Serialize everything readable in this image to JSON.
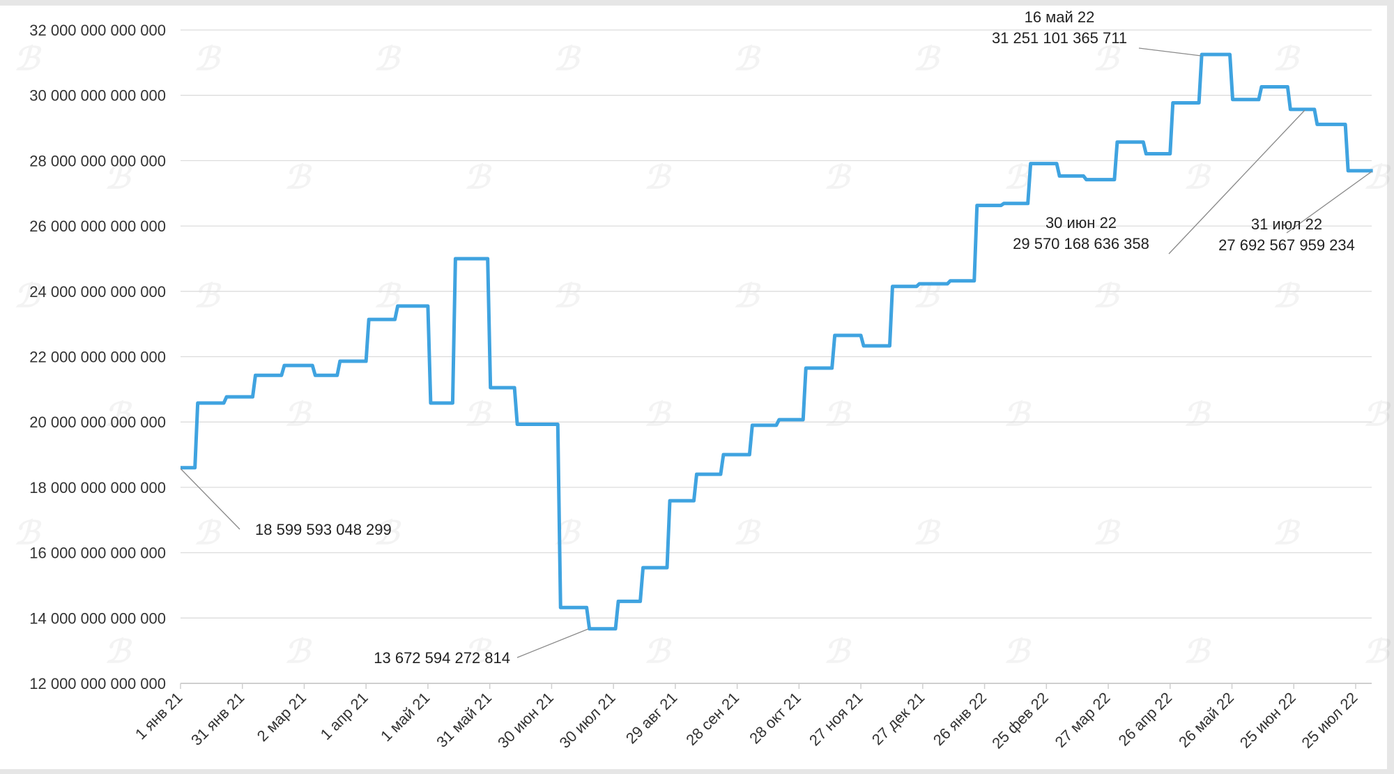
{
  "chart_data": {
    "type": "line",
    "step": true,
    "title": "",
    "xlabel": "",
    "ylabel": "",
    "ylim": [
      12000000000000,
      32000000000000
    ],
    "yticks": [
      12000000000000,
      14000000000000,
      16000000000000,
      18000000000000,
      20000000000000,
      22000000000000,
      24000000000000,
      26000000000000,
      28000000000000,
      30000000000000,
      32000000000000
    ],
    "ytick_labels": [
      "12 000 000 000 000",
      "14 000 000 000 000",
      "16 000 000 000 000",
      "18 000 000 000 000",
      "20 000 000 000 000",
      "22 000 000 000 000",
      "24 000 000 000 000",
      "26 000 000 000 000",
      "28 000 000 000 000",
      "30 000 000 000 000",
      "32 000 000 000 000"
    ],
    "xticks": [
      "2021-01-01",
      "2021-01-31",
      "2021-03-02",
      "2021-04-01",
      "2021-05-01",
      "2021-05-31",
      "2021-06-30",
      "2021-07-30",
      "2021-08-29",
      "2021-09-28",
      "2021-10-28",
      "2021-11-27",
      "2021-12-27",
      "2022-01-26",
      "2022-02-25",
      "2022-03-27",
      "2022-04-26",
      "2022-05-26",
      "2022-06-25",
      "2022-07-25"
    ],
    "xtick_labels": [
      "1 янв 21",
      "31 янв 21",
      "2 мар 21",
      "1 апр 21",
      "1 май 21",
      "31 май 21",
      "30 июн 21",
      "30 июл 21",
      "29 авг 21",
      "28 сен 21",
      "28 окт 21",
      "27 ноя 21",
      "27 дек 21",
      "26 янв 22",
      "25 фев 22",
      "27 мар 22",
      "26 апр 22",
      "26 май 22",
      "25 июн 22",
      "25 июл 22"
    ],
    "grid": true,
    "line_color": "#3fa3e0",
    "series": [
      {
        "points": [
          [
            "2021-01-01",
            18.6
          ],
          [
            "2021-01-09",
            20.58
          ],
          [
            "2021-01-23",
            20.77
          ],
          [
            "2021-02-06",
            21.43
          ],
          [
            "2021-02-20",
            21.73
          ],
          [
            "2021-03-07",
            21.43
          ],
          [
            "2021-03-19",
            21.86
          ],
          [
            "2021-04-02",
            23.14
          ],
          [
            "2021-04-16",
            23.55
          ],
          [
            "2021-05-02",
            20.58
          ],
          [
            "2021-05-14",
            25.0
          ],
          [
            "2021-05-31",
            21.05
          ],
          [
            "2021-06-13",
            19.93
          ],
          [
            "2021-07-04",
            14.32
          ],
          [
            "2021-07-18",
            13.67
          ],
          [
            "2021-08-01",
            14.51
          ],
          [
            "2021-08-13",
            15.54
          ],
          [
            "2021-08-26",
            17.59
          ],
          [
            "2021-09-08",
            18.4
          ],
          [
            "2021-09-21",
            19.0
          ],
          [
            "2021-10-05",
            19.9
          ],
          [
            "2021-10-18",
            20.07
          ],
          [
            "2021-10-31",
            21.65
          ],
          [
            "2021-11-14",
            22.65
          ],
          [
            "2021-11-28",
            22.33
          ],
          [
            "2021-12-12",
            24.15
          ],
          [
            "2021-12-25",
            24.23
          ],
          [
            "2022-01-09",
            24.32
          ],
          [
            "2022-01-22",
            26.63
          ],
          [
            "2022-02-04",
            26.69
          ],
          [
            "2022-02-17",
            27.91
          ],
          [
            "2022-03-03",
            27.53
          ],
          [
            "2022-03-16",
            27.42
          ],
          [
            "2022-03-31",
            28.57
          ],
          [
            "2022-04-14",
            28.21
          ],
          [
            "2022-04-27",
            29.77
          ],
          [
            "2022-05-11",
            31.25
          ],
          [
            "2022-05-26",
            29.87
          ],
          [
            "2022-06-09",
            30.26
          ],
          [
            "2022-06-23",
            29.57
          ],
          [
            "2022-07-06",
            29.11
          ],
          [
            "2022-07-21",
            27.69
          ],
          [
            "2022-08-02",
            27.69
          ]
        ],
        "value_unit_multiplier": 1000000000000
      }
    ],
    "annotations": [
      {
        "date": "2021-01-01",
        "value": 18599593048299,
        "lines": [
          "18 599 593 048 299"
        ]
      },
      {
        "date": "2021-07-18",
        "value": 13672594272814,
        "lines": [
          "13 672 594 272 814"
        ]
      },
      {
        "date": "2022-05-16",
        "value": 31251101365711,
        "lines": [
          "16 май 22",
          "31 251 101 365 711"
        ]
      },
      {
        "date": "2022-06-30",
        "value": 29570168636358,
        "lines": [
          "30 июн 22",
          "29 570 168 636 358"
        ]
      },
      {
        "date": "2022-07-31",
        "value": 27692567959234,
        "lines": [
          "31 июл 22",
          "27 692 567 959 234"
        ]
      }
    ]
  }
}
